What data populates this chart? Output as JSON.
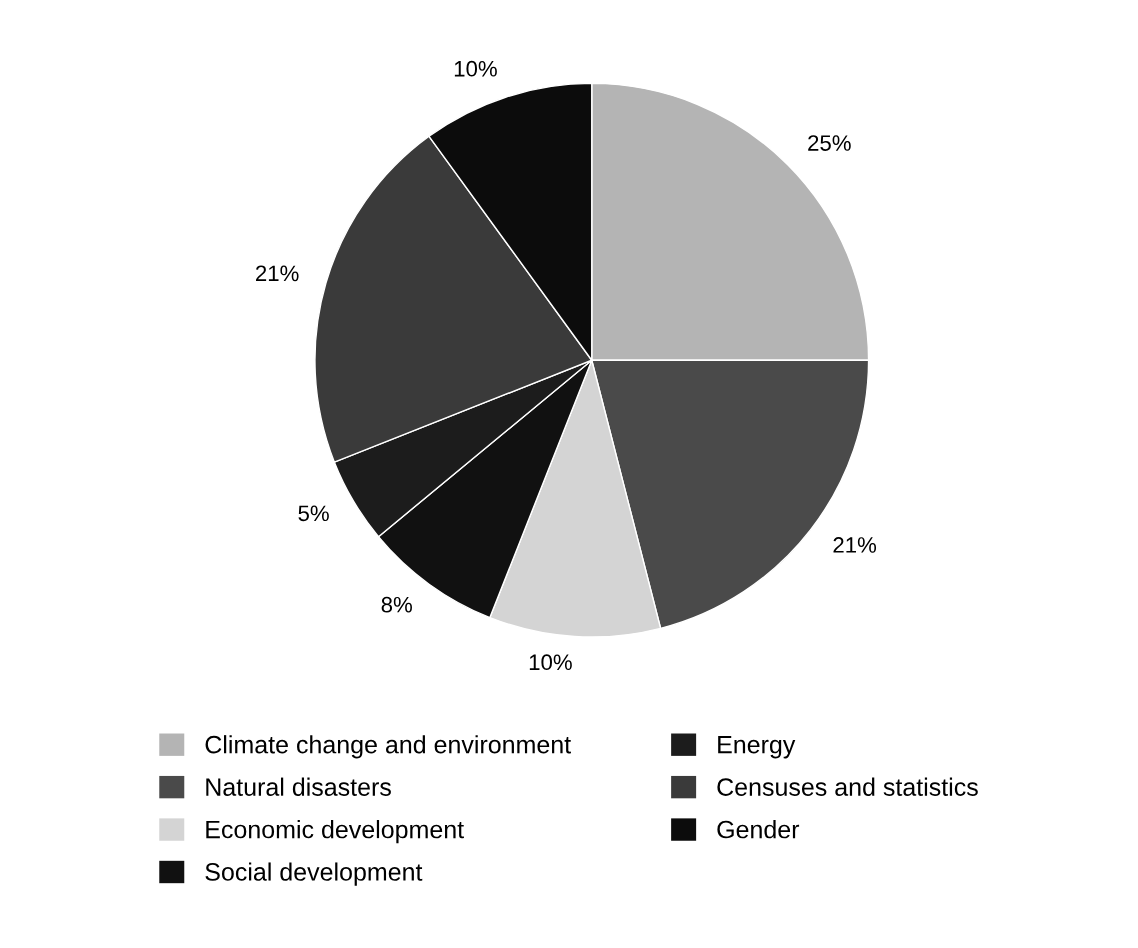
{
  "chart_data": {
    "type": "pie",
    "categories": [
      "Climate change and environment",
      "Natural disasters",
      "Economic development",
      "Social development",
      "Energy",
      "Censuses and statistics",
      "Gender"
    ],
    "values": [
      25,
      21,
      10,
      8,
      5,
      21,
      10
    ],
    "colors": [
      "#b4b4b4",
      "#4a4a4a",
      "#d4d4d4",
      "#111111",
      "#1c1c1c",
      "#3a3a3a",
      "#0c0c0c"
    ],
    "value_labels": [
      "25%",
      "21%",
      "10%",
      "8%",
      "5%",
      "21%",
      "10%"
    ],
    "legend": "bottom"
  }
}
